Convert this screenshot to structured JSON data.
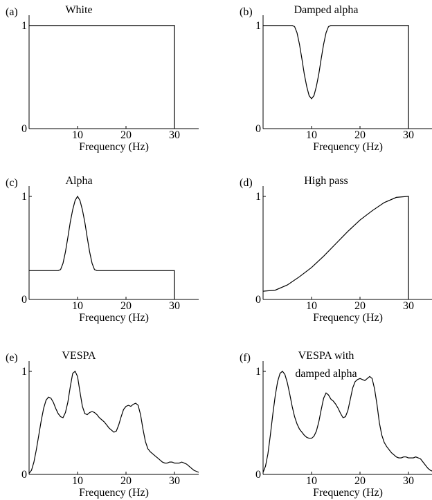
{
  "chart_data": [
    {
      "type": "line",
      "panel_label": "(a)",
      "title": "White",
      "title2": "",
      "xlabel": "Frequency (Hz)",
      "xticks": [
        "10",
        "20",
        "30"
      ],
      "yticks": [
        "0",
        "1"
      ],
      "xlim": [
        0,
        35
      ],
      "ylim": [
        0,
        1.1
      ],
      "grid": false,
      "x": [
        0,
        30,
        30
      ],
      "y": [
        1,
        1,
        0
      ]
    },
    {
      "type": "line",
      "panel_label": "(b)",
      "title": "Damped alpha",
      "title2": "",
      "xlabel": "Frequency (Hz)",
      "xticks": [
        "10",
        "20",
        "30"
      ],
      "yticks": [
        "0",
        "1"
      ],
      "xlim": [
        0,
        35
      ],
      "ylim": [
        0,
        1.1
      ],
      "grid": false,
      "x": [
        0,
        6,
        6.5,
        7,
        7.5,
        8,
        8.5,
        9,
        9.5,
        10,
        10.5,
        11,
        11.5,
        12,
        12.5,
        13,
        13.5,
        14,
        30,
        30
      ],
      "y": [
        1,
        1,
        0.99,
        0.93,
        0.82,
        0.68,
        0.53,
        0.41,
        0.32,
        0.29,
        0.32,
        0.41,
        0.53,
        0.68,
        0.82,
        0.93,
        0.99,
        1,
        1,
        0
      ]
    },
    {
      "type": "line",
      "panel_label": "(c)",
      "title": "Alpha",
      "title2": "",
      "xlabel": "Frequency (Hz)",
      "xticks": [
        "10",
        "20",
        "30"
      ],
      "yticks": [
        "0",
        "1"
      ],
      "xlim": [
        0,
        35
      ],
      "ylim": [
        0,
        1.1
      ],
      "grid": false,
      "x": [
        0,
        6,
        6.5,
        7,
        7.5,
        8,
        8.5,
        9,
        9.5,
        10,
        10.5,
        11,
        11.5,
        12,
        12.5,
        13,
        13.5,
        14,
        30,
        30
      ],
      "y": [
        0.28,
        0.28,
        0.29,
        0.35,
        0.46,
        0.6,
        0.75,
        0.87,
        0.96,
        1,
        0.96,
        0.87,
        0.75,
        0.6,
        0.46,
        0.35,
        0.29,
        0.28,
        0.28,
        0
      ]
    },
    {
      "type": "line",
      "panel_label": "(d)",
      "title": "High pass",
      "title2": "",
      "xlabel": "Frequency (Hz)",
      "xticks": [
        "10",
        "20",
        "30"
      ],
      "yticks": [
        "0",
        "1"
      ],
      "xlim": [
        0,
        35
      ],
      "ylim": [
        0,
        1.1
      ],
      "grid": false,
      "x": [
        0,
        2.5,
        5,
        7.5,
        10,
        12.5,
        15,
        17.5,
        20,
        22.5,
        25,
        27.5,
        30,
        30
      ],
      "y": [
        0.08,
        0.09,
        0.14,
        0.22,
        0.31,
        0.42,
        0.54,
        0.66,
        0.77,
        0.86,
        0.94,
        0.99,
        1,
        0
      ]
    },
    {
      "type": "line",
      "panel_label": "(e)",
      "title": "VESPA",
      "title2": "",
      "xlabel": "Frequency (Hz)",
      "xticks": [
        "10",
        "20",
        "30"
      ],
      "yticks": [
        "0",
        "1"
      ],
      "xlim": [
        0,
        35
      ],
      "ylim": [
        0,
        1.1
      ],
      "grid": false,
      "x": [
        0,
        0.5,
        1,
        1.5,
        2,
        2.5,
        3,
        3.5,
        4,
        4.5,
        5,
        5.5,
        6,
        6.5,
        7,
        7.5,
        8,
        8.5,
        9,
        9.5,
        10,
        10.5,
        11,
        11.5,
        12,
        12.5,
        13,
        13.5,
        14,
        14.5,
        15,
        15.5,
        16,
        16.5,
        17,
        17.5,
        18,
        18.5,
        19,
        19.5,
        20,
        20.5,
        21,
        21.5,
        22,
        22.5,
        23,
        23.5,
        24,
        24.5,
        25,
        25.5,
        26,
        26.5,
        27,
        27.5,
        28,
        28.5,
        29,
        29.5,
        30,
        30.5,
        31,
        31.5,
        32,
        32.5,
        33,
        33.5,
        34,
        34.5,
        35
      ],
      "y": [
        0.01,
        0.04,
        0.12,
        0.24,
        0.38,
        0.52,
        0.64,
        0.72,
        0.75,
        0.74,
        0.7,
        0.64,
        0.59,
        0.56,
        0.55,
        0.6,
        0.7,
        0.85,
        0.98,
        1.0,
        0.95,
        0.8,
        0.66,
        0.59,
        0.58,
        0.6,
        0.61,
        0.6,
        0.58,
        0.55,
        0.53,
        0.51,
        0.48,
        0.45,
        0.43,
        0.41,
        0.42,
        0.48,
        0.56,
        0.63,
        0.66,
        0.67,
        0.66,
        0.68,
        0.69,
        0.67,
        0.58,
        0.44,
        0.32,
        0.25,
        0.22,
        0.2,
        0.18,
        0.16,
        0.14,
        0.12,
        0.11,
        0.11,
        0.12,
        0.12,
        0.11,
        0.11,
        0.11,
        0.12,
        0.11,
        0.1,
        0.08,
        0.06,
        0.04,
        0.03,
        0.02
      ]
    },
    {
      "type": "line",
      "panel_label": "(f)",
      "title": "VESPA with",
      "title2": "damped alpha",
      "xlabel": "Frequency (Hz)",
      "xticks": [
        "10",
        "20",
        "30"
      ],
      "yticks": [
        "0",
        "1"
      ],
      "xlim": [
        0,
        35
      ],
      "ylim": [
        0,
        1.1
      ],
      "grid": false,
      "x": [
        0,
        0.5,
        1,
        1.5,
        2,
        2.5,
        3,
        3.5,
        4,
        4.5,
        5,
        5.5,
        6,
        6.5,
        7,
        7.5,
        8,
        8.5,
        9,
        9.5,
        10,
        10.5,
        11,
        11.5,
        12,
        12.5,
        13,
        13.5,
        14,
        14.5,
        15,
        15.5,
        16,
        16.5,
        17,
        17.5,
        18,
        18.5,
        19,
        19.5,
        20,
        20.5,
        21,
        21.5,
        22,
        22.5,
        23,
        23.5,
        24,
        24.5,
        25,
        25.5,
        26,
        26.5,
        27,
        27.5,
        28,
        28.5,
        29,
        29.5,
        30,
        30.5,
        31,
        31.5,
        32,
        32.5,
        33,
        33.5,
        34,
        34.5,
        35
      ],
      "y": [
        0.02,
        0.08,
        0.2,
        0.38,
        0.58,
        0.76,
        0.9,
        0.98,
        1.0,
        0.97,
        0.89,
        0.78,
        0.66,
        0.56,
        0.49,
        0.44,
        0.41,
        0.38,
        0.36,
        0.35,
        0.35,
        0.37,
        0.42,
        0.51,
        0.63,
        0.74,
        0.79,
        0.77,
        0.73,
        0.71,
        0.68,
        0.64,
        0.59,
        0.55,
        0.56,
        0.62,
        0.73,
        0.84,
        0.9,
        0.92,
        0.93,
        0.92,
        0.91,
        0.93,
        0.95,
        0.93,
        0.83,
        0.68,
        0.5,
        0.38,
        0.31,
        0.27,
        0.24,
        0.21,
        0.19,
        0.17,
        0.16,
        0.16,
        0.17,
        0.17,
        0.16,
        0.16,
        0.16,
        0.17,
        0.16,
        0.15,
        0.12,
        0.09,
        0.06,
        0.04,
        0.03
      ]
    }
  ]
}
